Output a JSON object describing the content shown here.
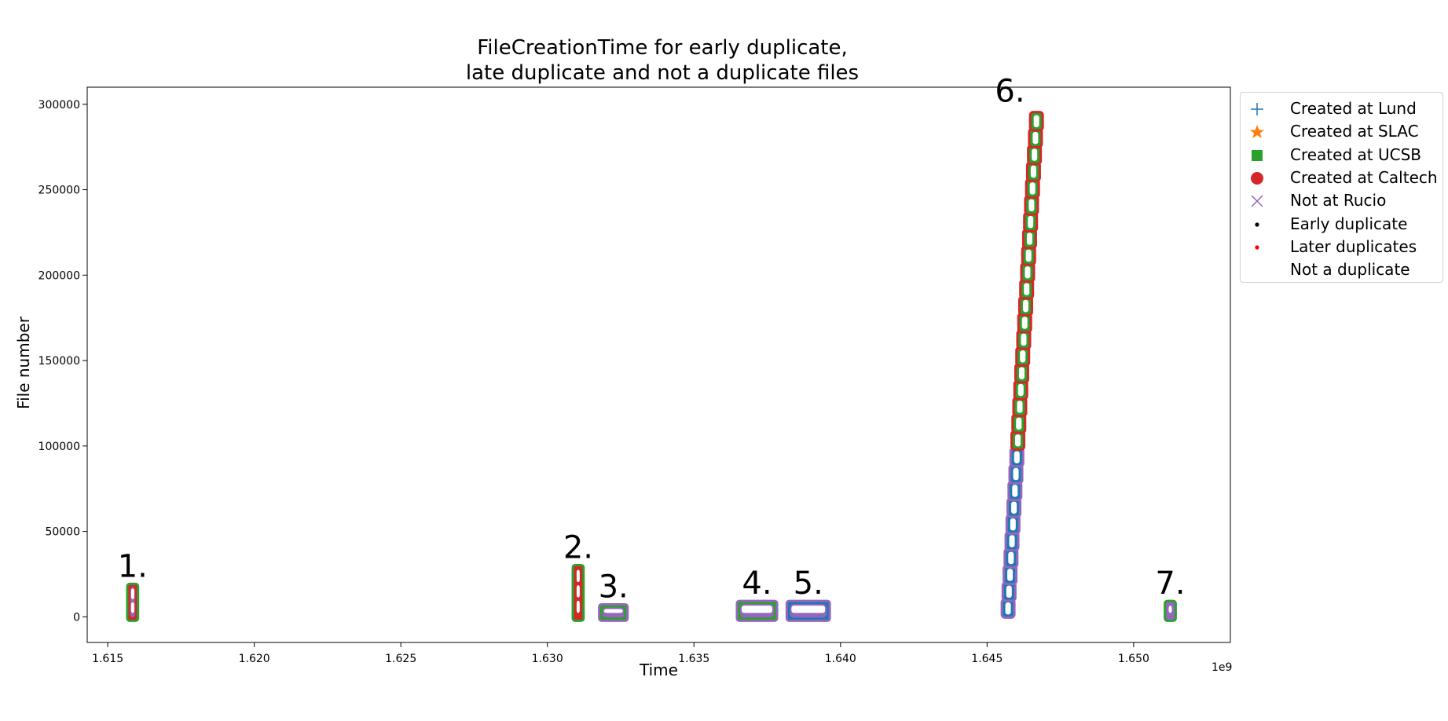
{
  "chart_data": {
    "type": "scatter",
    "title": [
      "FileCreationTime for early duplicate,",
      "late duplicate and not a duplicate files"
    ],
    "xlabel": "Time",
    "ylabel": "File number",
    "x_offset_label": "1e9",
    "xlim": [
      1.6143,
      1.6533
    ],
    "ylim": [
      -15000,
      310000
    ],
    "x_ticks": [
      1.615,
      1.62,
      1.625,
      1.63,
      1.635,
      1.64,
      1.645,
      1.65
    ],
    "x_tick_labels": [
      "1.615",
      "1.620",
      "1.625",
      "1.630",
      "1.635",
      "1.640",
      "1.645",
      "1.650"
    ],
    "y_ticks": [
      0,
      50000,
      100000,
      150000,
      200000,
      250000,
      300000
    ],
    "y_tick_labels": [
      "0",
      "50000",
      "100000",
      "150000",
      "200000",
      "250000",
      "300000"
    ],
    "grid": false,
    "legend_position": "outside-right",
    "legend": [
      {
        "label": "Created at Lund",
        "marker": "plus",
        "color": "#1f77b4"
      },
      {
        "label": "Created at SLAC",
        "marker": "star",
        "color": "#ff7f0e"
      },
      {
        "label": "Created at UCSB",
        "marker": "square",
        "color": "#2ca02c"
      },
      {
        "label": "Created at Caltech",
        "marker": "circle",
        "color": "#d62728"
      },
      {
        "label": "Not at Rucio",
        "marker": "x",
        "color": "#9467bd"
      },
      {
        "label": "Early duplicate",
        "marker": "point",
        "color": "#000000"
      },
      {
        "label": "Later duplicates",
        "marker": "point",
        "color": "#ff0000"
      },
      {
        "label": "Not a duplicate",
        "marker": "none",
        "color": "#ffffff"
      }
    ],
    "clusters": [
      {
        "label": "1.",
        "kind": "block",
        "x": [
          1.6158,
          1.6159
        ],
        "y": [
          0,
          17000
        ],
        "colors": [
          "#2ca02c",
          "#d62728"
        ],
        "interior": "#9467bd"
      },
      {
        "label": "2.",
        "kind": "block",
        "x": [
          1.631,
          1.6311
        ],
        "y": [
          0,
          28000
        ],
        "colors": [
          "#2ca02c",
          "#d62728"
        ],
        "interior": "#d62728"
      },
      {
        "label": "3.",
        "kind": "block",
        "x": [
          1.6319,
          1.6326
        ],
        "y": [
          0,
          5000
        ],
        "colors": [
          "#9467bd",
          "#2ca02c"
        ],
        "interior": "#9467bd"
      },
      {
        "label": "4.",
        "kind": "block",
        "x": [
          1.6366,
          1.6377
        ],
        "y": [
          0,
          7000
        ],
        "colors": [
          "#9467bd",
          "#2ca02c"
        ],
        "interior": "#9467bd"
      },
      {
        "label": "5.",
        "kind": "block",
        "x": [
          1.6383,
          1.6395
        ],
        "y": [
          0,
          7000
        ],
        "colors": [
          "#9467bd",
          "#1f77b4"
        ],
        "interior": "#9467bd"
      },
      {
        "label": "6.",
        "kind": "ramp",
        "x": [
          1.6457,
          1.6467
        ],
        "y": [
          0,
          295000
        ],
        "split_y": 108000,
        "colors_low": [
          "#9467bd",
          "#1f77b4"
        ],
        "colors_high": [
          "#d62728",
          "#2ca02c"
        ]
      },
      {
        "label": "7.",
        "kind": "block",
        "x": [
          1.6512,
          1.6513
        ],
        "y": [
          0,
          7000
        ],
        "colors": [
          "#2ca02c",
          "#9467bd"
        ],
        "interior": "#9467bd"
      }
    ]
  }
}
